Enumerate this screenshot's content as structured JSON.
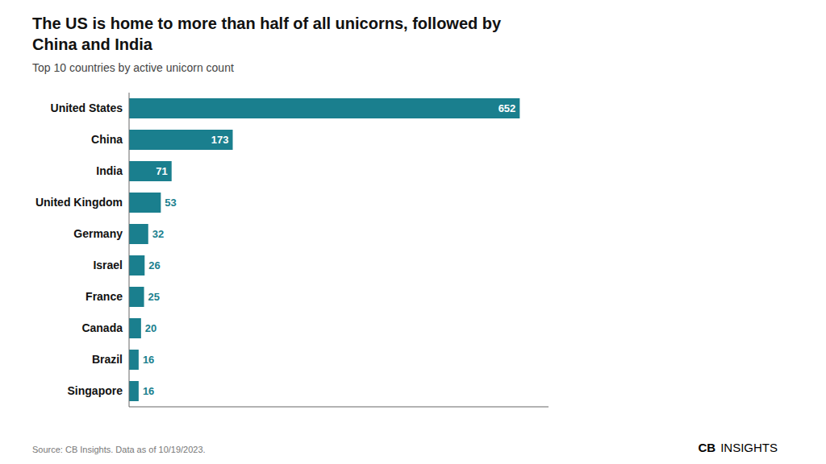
{
  "chart_data": {
    "type": "bar",
    "orientation": "horizontal",
    "title": "The US is home to more than half of all unicorns, followed by China and India",
    "subtitle": "Top 10 countries by active unicorn count",
    "source": "Source: CB Insights. Data as of 10/19/2023.",
    "annotations": [
      "CB",
      "INSIGHTS"
    ],
    "categories": [
      "United States",
      "China",
      "India",
      "United Kingdom",
      "Germany",
      "Israel",
      "France",
      "Canada",
      "Brazil",
      "Singapore"
    ],
    "values": [
      652,
      173,
      71,
      53,
      32,
      26,
      25,
      20,
      16,
      16
    ],
    "color": "#1a7f8e",
    "xlim": [
      0,
      700
    ],
    "tick_labels": "y",
    "data_labels": true,
    "grid": false
  }
}
